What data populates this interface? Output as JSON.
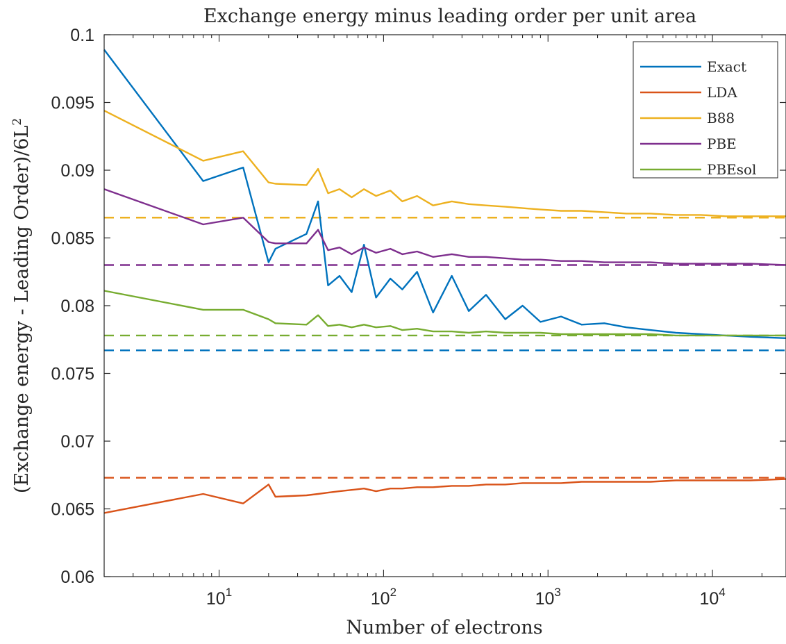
{
  "chart_data": {
    "type": "line",
    "title": "Exchange energy minus leading order per unit area",
    "xlabel": "Number of electrons",
    "ylabel": "(Exchange energy - Leading Order)/6L",
    "ylabel_superscript": "2",
    "xscale": "log",
    "xlim": [
      2,
      28000
    ],
    "ylim": [
      0.06,
      0.1
    ],
    "x_ticks": [
      {
        "value": 10,
        "base": "10",
        "exp": "1"
      },
      {
        "value": 100,
        "base": "10",
        "exp": "2"
      },
      {
        "value": 1000,
        "base": "10",
        "exp": "3"
      },
      {
        "value": 10000,
        "base": "10",
        "exp": "4"
      }
    ],
    "y_ticks": [
      {
        "value": 0.06,
        "label": "0.06"
      },
      {
        "value": 0.065,
        "label": "0.065"
      },
      {
        "value": 0.07,
        "label": "0.07"
      },
      {
        "value": 0.075,
        "label": "0.075"
      },
      {
        "value": 0.08,
        "label": "0.08"
      },
      {
        "value": 0.085,
        "label": "0.085"
      },
      {
        "value": 0.09,
        "label": "0.09"
      },
      {
        "value": 0.095,
        "label": "0.095"
      },
      {
        "value": 0.1,
        "label": "0.1"
      }
    ],
    "grid": false,
    "legend_position": "top-right",
    "series": [
      {
        "name": "Exact",
        "color": "#0072BD",
        "asymptote": 0.0767,
        "x": [
          2,
          8,
          14,
          20,
          22,
          34,
          40,
          46,
          54,
          64,
          76,
          90,
          110,
          130,
          160,
          200,
          260,
          330,
          420,
          550,
          700,
          900,
          1200,
          1600,
          2200,
          3000,
          4200,
          6000,
          8500,
          12000,
          17000,
          28000
        ],
        "y": [
          0.0989,
          0.0892,
          0.0902,
          0.0832,
          0.0842,
          0.0853,
          0.0877,
          0.0815,
          0.0822,
          0.081,
          0.0845,
          0.0806,
          0.082,
          0.0812,
          0.0825,
          0.0795,
          0.0822,
          0.0796,
          0.0808,
          0.079,
          0.08,
          0.0788,
          0.0792,
          0.0786,
          0.0787,
          0.0784,
          0.0782,
          0.078,
          0.0779,
          0.0778,
          0.0777,
          0.0776
        ]
      },
      {
        "name": "LDA",
        "color": "#D95319",
        "asymptote": 0.0673,
        "x": [
          2,
          8,
          14,
          20,
          22,
          34,
          40,
          46,
          54,
          64,
          76,
          90,
          110,
          130,
          160,
          200,
          260,
          330,
          420,
          550,
          700,
          900,
          1200,
          1600,
          2200,
          3000,
          4200,
          6000,
          8500,
          12000,
          17000,
          28000
        ],
        "y": [
          0.0647,
          0.0661,
          0.0654,
          0.0668,
          0.0659,
          0.066,
          0.0661,
          0.0662,
          0.0663,
          0.0664,
          0.0665,
          0.0663,
          0.0665,
          0.0665,
          0.0666,
          0.0666,
          0.0667,
          0.0667,
          0.0668,
          0.0668,
          0.0669,
          0.0669,
          0.0669,
          0.067,
          0.067,
          0.067,
          0.067,
          0.0671,
          0.0671,
          0.0671,
          0.0671,
          0.0672
        ]
      },
      {
        "name": "B88",
        "color": "#EDB120",
        "asymptote": 0.0865,
        "x": [
          2,
          8,
          14,
          20,
          22,
          34,
          40,
          46,
          54,
          64,
          76,
          90,
          110,
          130,
          160,
          200,
          260,
          330,
          420,
          550,
          700,
          900,
          1200,
          1600,
          2200,
          3000,
          4200,
          6000,
          8500,
          12000,
          17000,
          28000
        ],
        "y": [
          0.0944,
          0.0907,
          0.0914,
          0.0891,
          0.089,
          0.0889,
          0.0901,
          0.0883,
          0.0886,
          0.088,
          0.0886,
          0.0881,
          0.0885,
          0.0877,
          0.0881,
          0.0874,
          0.0877,
          0.0875,
          0.0874,
          0.0873,
          0.0872,
          0.0871,
          0.087,
          0.087,
          0.0869,
          0.0868,
          0.0868,
          0.0867,
          0.0867,
          0.0866,
          0.0866,
          0.0866
        ]
      },
      {
        "name": "PBE",
        "color": "#7E2F8E",
        "asymptote": 0.083,
        "x": [
          2,
          8,
          14,
          20,
          22,
          34,
          40,
          46,
          54,
          64,
          76,
          90,
          110,
          130,
          160,
          200,
          260,
          330,
          420,
          550,
          700,
          900,
          1200,
          1600,
          2200,
          3000,
          4200,
          6000,
          8500,
          12000,
          17000,
          28000
        ],
        "y": [
          0.0886,
          0.086,
          0.0865,
          0.0847,
          0.0846,
          0.0846,
          0.0856,
          0.0841,
          0.0843,
          0.0838,
          0.0843,
          0.0839,
          0.0842,
          0.0838,
          0.084,
          0.0836,
          0.0838,
          0.0836,
          0.0836,
          0.0835,
          0.0834,
          0.0834,
          0.0833,
          0.0833,
          0.0832,
          0.0832,
          0.0832,
          0.0831,
          0.0831,
          0.0831,
          0.0831,
          0.083
        ]
      },
      {
        "name": "PBEsol",
        "color": "#77AC30",
        "asymptote": 0.0778,
        "x": [
          2,
          8,
          14,
          20,
          22,
          34,
          40,
          46,
          54,
          64,
          76,
          90,
          110,
          130,
          160,
          200,
          260,
          330,
          420,
          550,
          700,
          900,
          1200,
          1600,
          2200,
          3000,
          4200,
          6000,
          8500,
          12000,
          17000,
          28000
        ],
        "y": [
          0.0811,
          0.0797,
          0.0797,
          0.079,
          0.0787,
          0.0786,
          0.0793,
          0.0785,
          0.0786,
          0.0784,
          0.0786,
          0.0784,
          0.0785,
          0.0782,
          0.0783,
          0.0781,
          0.0781,
          0.078,
          0.0781,
          0.078,
          0.078,
          0.078,
          0.0779,
          0.0779,
          0.0779,
          0.0779,
          0.0779,
          0.0778,
          0.0778,
          0.0778,
          0.0778,
          0.0778
        ]
      }
    ]
  }
}
